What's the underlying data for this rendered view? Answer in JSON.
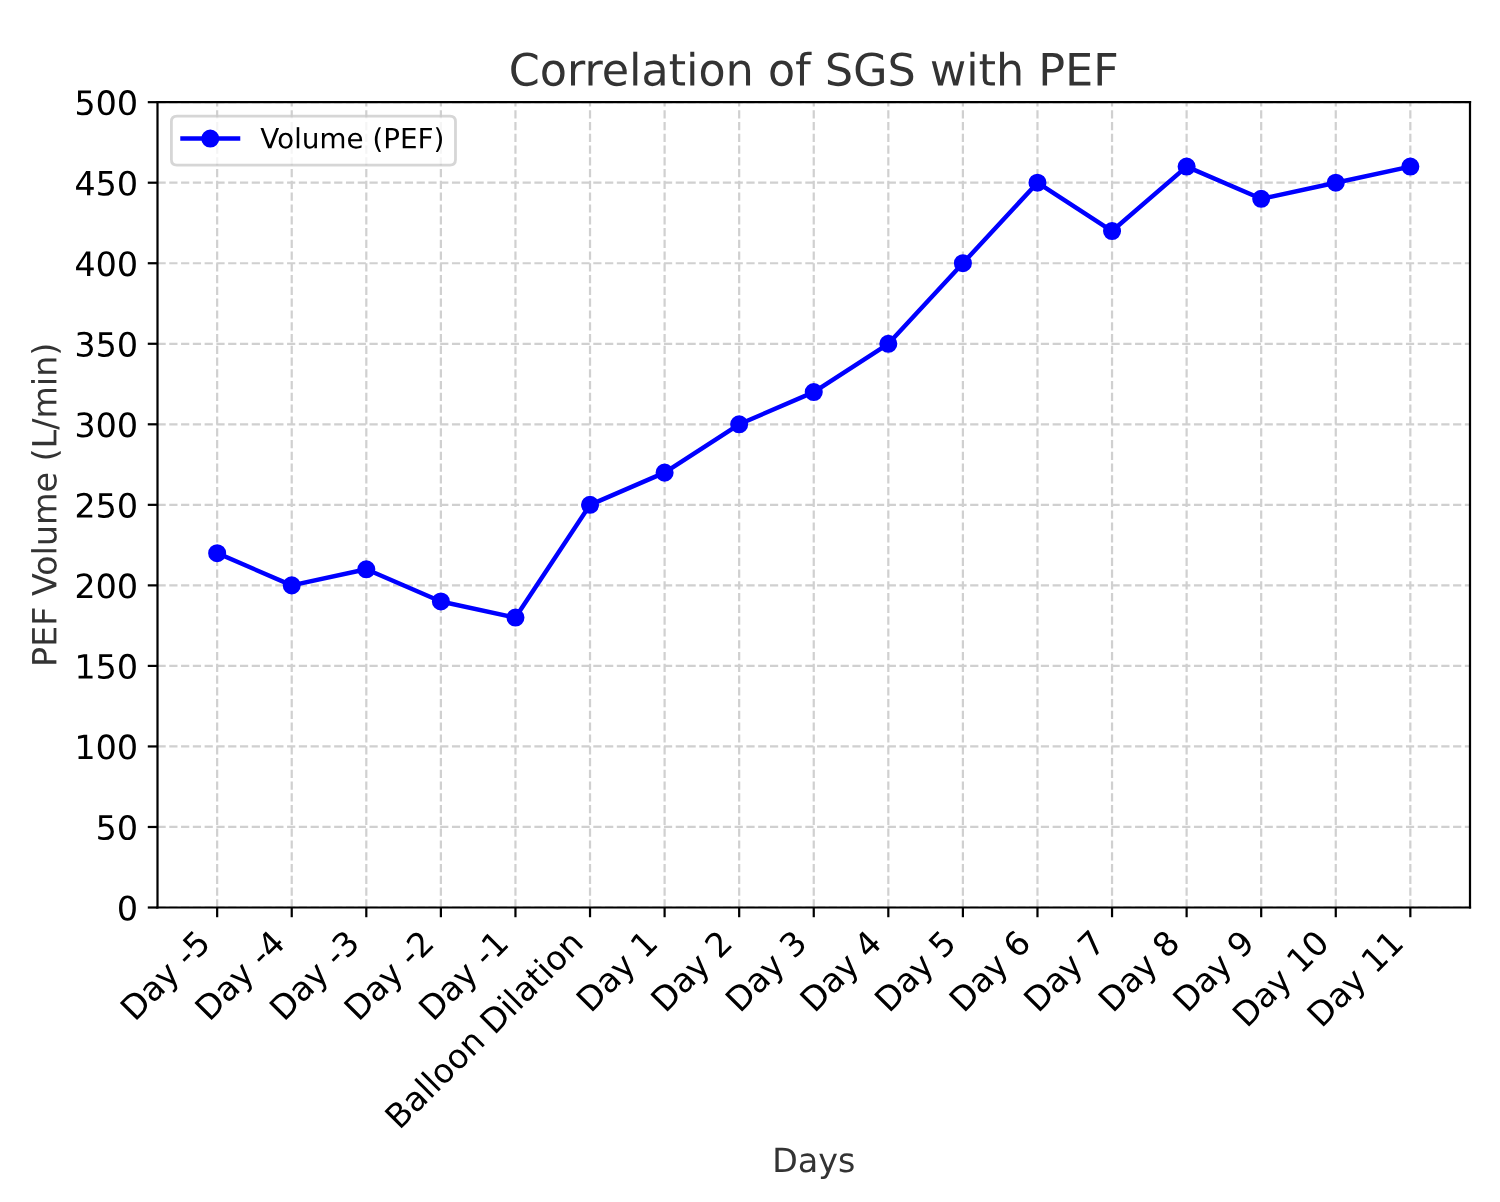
{
  "chart_data": {
    "type": "line",
    "title": "Correlation of SGS with PEF",
    "xlabel": "Days",
    "ylabel": "PEF Volume (L/min)",
    "categories": [
      "Day -5",
      "Day -4",
      "Day -3",
      "Day -2",
      "Day -1",
      "Balloon Dilation",
      "Day 1",
      "Day 2",
      "Day 3",
      "Day 4",
      "Day 5",
      "Day 6",
      "Day 7",
      "Day 8",
      "Day 9",
      "Day 10",
      "Day 11"
    ],
    "series": [
      {
        "name": "Volume (PEF)",
        "color": "#0000ff",
        "values": [
          220,
          200,
          210,
          190,
          180,
          250,
          270,
          300,
          320,
          350,
          400,
          450,
          420,
          460,
          440,
          450,
          460
        ]
      }
    ],
    "ylim": [
      0,
      500
    ],
    "yticks": [
      0,
      50,
      100,
      150,
      200,
      250,
      300,
      350,
      400,
      450,
      500
    ],
    "grid": true,
    "legend": "top left",
    "marker": "circle",
    "line_style": "solid"
  }
}
